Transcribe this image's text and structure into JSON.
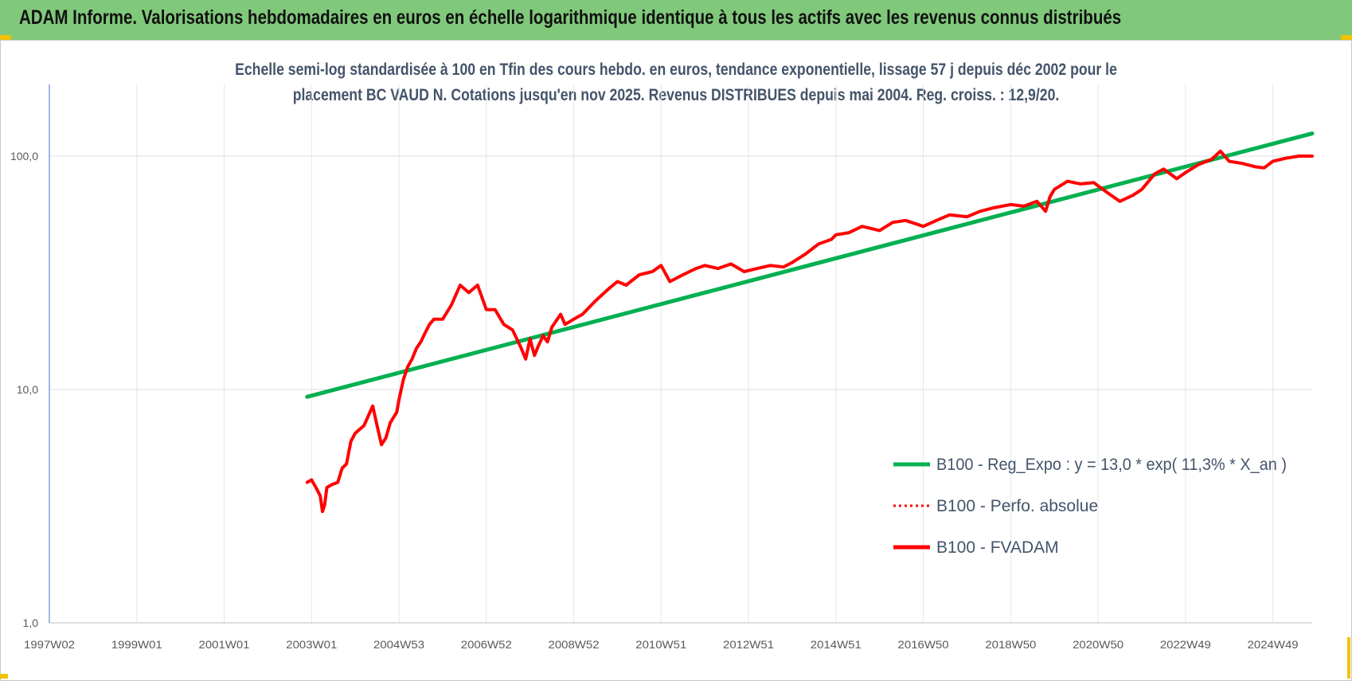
{
  "banner": {
    "title": "ADAM Informe. Valorisations hebdomadaires en euros en échelle logarithmique identique à tous les actifs avec les revenus connus distribués",
    "background": "#80c97b"
  },
  "chart_data": {
    "type": "line",
    "title_line1": "Echelle semi-log standardisée à 100 en Tfin des cours hebdo. en euros, tendance exponentielle, lissage 57 j depuis déc 2002 pour le",
    "title_line2": "placement BC VAUD N. Cotations jusqu'en nov 2025. Revenus DISTRIBUES depuis mai 2004. Reg. croiss. : 12,9/20.",
    "y_scale": "log",
    "ylim": [
      1,
      200
    ],
    "y_ticks": [
      1,
      10,
      100
    ],
    "y_tick_labels": [
      "1,0",
      "10,0",
      "100,0"
    ],
    "xlim": [
      1997.0,
      2025.9
    ],
    "x_ticks": [
      1997.0,
      1999.0,
      2001.0,
      2003.0,
      2005.0,
      2007.0,
      2009.0,
      2011.0,
      2013.0,
      2015.0,
      2017.0,
      2019.0,
      2021.0,
      2023.0,
      2025.0
    ],
    "x_tick_labels": [
      "1997W02",
      "1999W01",
      "2001W01",
      "2003W01",
      "2004W53",
      "2006W52",
      "2008W52",
      "2010W51",
      "2012W51",
      "2014W51",
      "2016W50",
      "2018W50",
      "2020W50",
      "2022W49",
      "2024W49"
    ],
    "grid": true,
    "legend_position": "bottom-right",
    "series": [
      {
        "name": "B100 - Reg_Expo : y = 13,0 * exp( 11,3% *  X_an )",
        "color": "#00b050",
        "style": "solid",
        "x": [
          2002.9,
          2025.9
        ],
        "y": [
          9.3,
          125
        ]
      },
      {
        "name": "B100 - Perfo. absolue",
        "color": "#ff0000",
        "style": "dotted",
        "x": [],
        "y": []
      },
      {
        "name": "B100 - FVADAM",
        "color": "#ff0000",
        "style": "solid",
        "x": [
          2002.9,
          2003.0,
          2003.1,
          2003.2,
          2003.25,
          2003.3,
          2003.35,
          2003.45,
          2003.6,
          2003.7,
          2003.8,
          2003.9,
          2004.0,
          2004.2,
          2004.4,
          2004.5,
          2004.6,
          2004.7,
          2004.8,
          2004.95,
          2005.0,
          2005.1,
          2005.2,
          2005.3,
          2005.4,
          2005.5,
          2005.6,
          2005.7,
          2005.8,
          2006.0,
          2006.2,
          2006.4,
          2006.6,
          2006.8,
          2007.0,
          2007.2,
          2007.4,
          2007.6,
          2007.8,
          2007.9,
          2008.0,
          2008.1,
          2008.2,
          2008.3,
          2008.4,
          2008.5,
          2008.7,
          2008.8,
          2009.0,
          2009.2,
          2009.5,
          2009.8,
          2010.0,
          2010.2,
          2010.5,
          2010.8,
          2011.0,
          2011.2,
          2011.5,
          2011.8,
          2012.0,
          2012.3,
          2012.6,
          2012.9,
          2013.2,
          2013.5,
          2013.8,
          2014.0,
          2014.3,
          2014.6,
          2014.9,
          2015.0,
          2015.3,
          2015.6,
          2016.0,
          2016.3,
          2016.6,
          2017.0,
          2017.3,
          2017.6,
          2018.0,
          2018.3,
          2018.6,
          2019.0,
          2019.3,
          2019.6,
          2019.8,
          2019.9,
          2020.0,
          2020.3,
          2020.6,
          2020.9,
          2021.2,
          2021.5,
          2021.8,
          2022.0,
          2022.3,
          2022.5,
          2022.8,
          2023.0,
          2023.3,
          2023.6,
          2023.8,
          2024.0,
          2024.3,
          2024.6,
          2024.8,
          2025.0,
          2025.3,
          2025.6,
          2025.9
        ],
        "y": [
          4.0,
          4.1,
          3.8,
          3.5,
          3.0,
          3.2,
          3.8,
          3.9,
          4.0,
          4.6,
          4.8,
          6.0,
          6.5,
          7.0,
          8.5,
          7.0,
          5.8,
          6.2,
          7.2,
          8.0,
          9.0,
          11.0,
          12.5,
          13.5,
          15.0,
          16.0,
          17.5,
          19.0,
          20.0,
          20.0,
          23.0,
          28.0,
          26.0,
          28.0,
          22.0,
          22.0,
          19.0,
          18.0,
          15.0,
          13.5,
          16.5,
          14.0,
          15.5,
          17.0,
          16.0,
          18.5,
          21.0,
          19.0,
          20.0,
          21.0,
          24.0,
          27.0,
          29.0,
          28.0,
          31.0,
          32.0,
          34.0,
          29.0,
          31.0,
          33.0,
          34.0,
          33.0,
          34.5,
          32.0,
          33.0,
          34.0,
          33.5,
          35.0,
          38.0,
          42.0,
          44.0,
          46.0,
          47.0,
          50.0,
          48.0,
          52.0,
          53.0,
          50.0,
          53.0,
          56.0,
          55.0,
          58.0,
          60.0,
          62.0,
          61.0,
          64.0,
          58.0,
          67.0,
          72.0,
          78.0,
          76.0,
          77.0,
          70.0,
          64.0,
          68.0,
          72.0,
          84.0,
          88.0,
          80.0,
          85.0,
          92.0,
          97.0,
          105.0,
          95.0,
          93.0,
          90.0,
          89.0,
          95.0,
          98.0,
          100.0,
          100.0
        ]
      }
    ]
  }
}
